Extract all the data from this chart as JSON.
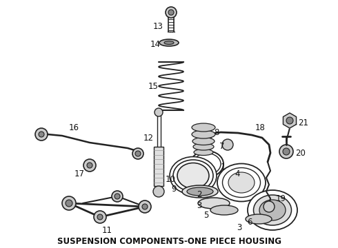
{
  "title": "SUSPENSION COMPONENTS-ONE PIECE HOUSING",
  "bg_color": "#ffffff",
  "line_color": "#222222",
  "text_color": "#111111",
  "title_fontsize": 8.5,
  "label_fontsize": 8,
  "fig_width": 4.9,
  "fig_height": 3.6
}
